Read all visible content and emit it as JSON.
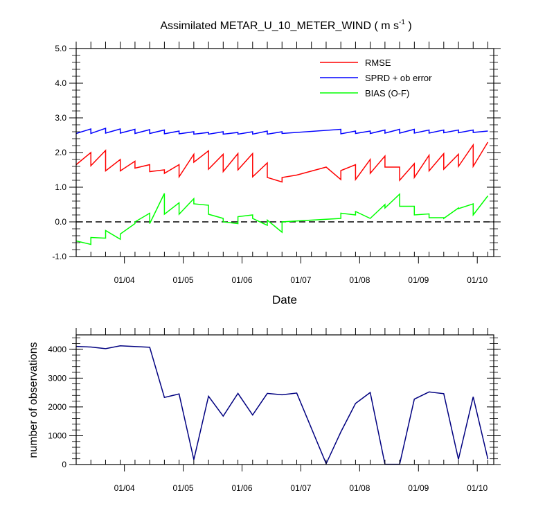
{
  "chart_data": [
    {
      "type": "line",
      "title": "Assimilated METAR_U_10_METER_WIND ( m s",
      "title_sup": "-1",
      "title_end": " )",
      "xlabel": "Date",
      "ylabel": "",
      "xlim": [
        0,
        7.1
      ],
      "ylim": [
        -1.0,
        5.0
      ],
      "x_ticks": [
        {
          "label": "01/04",
          "x": 0.82
        },
        {
          "label": "01/05",
          "x": 1.82
        },
        {
          "label": "01/06",
          "x": 2.82
        },
        {
          "label": "01/07",
          "x": 3.82
        },
        {
          "label": "01/08",
          "x": 4.82
        },
        {
          "label": "01/09",
          "x": 5.82
        },
        {
          "label": "01/10",
          "x": 6.82
        }
      ],
      "y_ticks": [
        "-1.0",
        "0.0",
        "1.0",
        "2.0",
        "3.0",
        "4.0",
        "5.0"
      ],
      "y_tick_values": [
        -1,
        0,
        1,
        2,
        3,
        4,
        5
      ],
      "zero_line": true,
      "legend_position": "top-right",
      "series": [
        {
          "name": "RMSE",
          "color": "#ff0000",
          "x": [
            0.0,
            0.25,
            0.25,
            0.5,
            0.5,
            0.75,
            0.75,
            1.0,
            1.0,
            1.25,
            1.25,
            1.5,
            1.5,
            1.75,
            1.75,
            2.0,
            2.0,
            2.25,
            2.25,
            2.5,
            2.5,
            2.75,
            2.75,
            3.0,
            3.0,
            3.25,
            3.25,
            3.5,
            3.5,
            3.75,
            4.25,
            4.5,
            4.5,
            4.75,
            4.75,
            5.0,
            5.0,
            5.25,
            5.25,
            5.5,
            5.5,
            5.75,
            5.75,
            6.0,
            6.0,
            6.25,
            6.25,
            6.5,
            6.5,
            6.75,
            6.75,
            7.0
          ],
          "values": [
            1.65,
            2.0,
            1.62,
            2.06,
            1.47,
            1.8,
            1.47,
            1.75,
            1.55,
            1.65,
            1.45,
            1.5,
            1.4,
            1.65,
            1.3,
            1.95,
            1.72,
            2.05,
            1.52,
            1.95,
            1.45,
            1.97,
            1.5,
            1.97,
            1.3,
            1.7,
            1.28,
            1.15,
            1.28,
            1.35,
            1.58,
            1.22,
            1.48,
            1.65,
            1.22,
            1.8,
            1.4,
            1.9,
            1.58,
            1.58,
            1.2,
            1.68,
            1.28,
            1.92,
            1.47,
            1.97,
            1.52,
            1.95,
            1.6,
            2.22,
            1.6,
            2.3
          ]
        },
        {
          "name": "SPRD + ob error",
          "color": "#0000ff",
          "x": [
            0.0,
            0.25,
            0.25,
            0.5,
            0.5,
            0.75,
            0.75,
            1.0,
            1.0,
            1.25,
            1.25,
            1.5,
            1.5,
            1.75,
            1.75,
            2.0,
            2.0,
            2.25,
            2.25,
            2.5,
            2.5,
            2.75,
            2.75,
            3.0,
            3.0,
            3.25,
            3.25,
            3.5,
            3.5,
            4.5,
            4.5,
            4.75,
            4.75,
            5.0,
            5.0,
            5.25,
            5.25,
            5.5,
            5.5,
            5.75,
            5.75,
            6.0,
            6.0,
            6.25,
            6.25,
            6.5,
            6.5,
            6.75,
            6.75,
            7.0
          ],
          "values": [
            2.55,
            2.68,
            2.55,
            2.7,
            2.56,
            2.68,
            2.56,
            2.67,
            2.55,
            2.66,
            2.55,
            2.65,
            2.54,
            2.62,
            2.54,
            2.6,
            2.53,
            2.58,
            2.53,
            2.6,
            2.53,
            2.58,
            2.53,
            2.6,
            2.53,
            2.62,
            2.53,
            2.6,
            2.55,
            2.67,
            2.54,
            2.62,
            2.55,
            2.62,
            2.55,
            2.65,
            2.56,
            2.67,
            2.56,
            2.67,
            2.56,
            2.65,
            2.56,
            2.65,
            2.57,
            2.65,
            2.57,
            2.65,
            2.58,
            2.62
          ]
        },
        {
          "name": "BIAS (O-F)",
          "color": "#00ff00",
          "x": [
            0.0,
            0.25,
            0.25,
            0.5,
            0.5,
            0.75,
            0.75,
            1.0,
            1.0,
            1.25,
            1.25,
            1.5,
            1.5,
            1.75,
            1.75,
            2.0,
            2.0,
            2.25,
            2.25,
            2.5,
            2.5,
            2.75,
            2.75,
            3.0,
            3.0,
            3.25,
            3.25,
            3.5,
            3.5,
            4.5,
            4.5,
            4.75,
            4.75,
            5.0,
            5.0,
            5.25,
            5.25,
            5.5,
            5.5,
            5.75,
            5.75,
            6.0,
            6.0,
            6.25,
            6.25,
            6.5,
            6.5,
            6.75,
            6.75,
            7.0
          ],
          "values": [
            -0.55,
            -0.65,
            -0.45,
            -0.47,
            -0.25,
            -0.5,
            -0.35,
            -0.05,
            0.0,
            0.25,
            -0.05,
            0.82,
            0.22,
            0.55,
            0.22,
            0.67,
            0.52,
            0.48,
            0.22,
            0.1,
            0.0,
            -0.05,
            0.15,
            0.2,
            0.1,
            -0.1,
            0.05,
            -0.3,
            0.0,
            0.1,
            0.25,
            0.2,
            0.3,
            0.1,
            0.1,
            0.5,
            0.4,
            0.8,
            0.45,
            0.45,
            0.2,
            0.23,
            0.12,
            0.12,
            0.1,
            0.4,
            0.38,
            0.52,
            0.2,
            0.75
          ]
        }
      ]
    },
    {
      "type": "line",
      "title": "",
      "xlabel": "",
      "ylabel": "number of observations",
      "xlim": [
        0,
        7.1
      ],
      "ylim": [
        0,
        4500
      ],
      "x_ticks": [
        {
          "label": "01/04",
          "x": 0.82
        },
        {
          "label": "01/05",
          "x": 1.82
        },
        {
          "label": "01/06",
          "x": 2.82
        },
        {
          "label": "01/07",
          "x": 3.82
        },
        {
          "label": "01/08",
          "x": 4.82
        },
        {
          "label": "01/09",
          "x": 5.82
        },
        {
          "label": "01/10",
          "x": 6.82
        }
      ],
      "y_ticks": [
        "0",
        "1000",
        "2000",
        "3000",
        "4000"
      ],
      "y_tick_values": [
        0,
        1000,
        2000,
        3000,
        4000
      ],
      "series": [
        {
          "name": "number of observations",
          "color": "#000080",
          "x": [
            0.0,
            0.25,
            0.5,
            0.75,
            1.25,
            1.5,
            1.75,
            2.0,
            2.25,
            2.5,
            2.75,
            3.0,
            3.25,
            3.5,
            3.75,
            4.25,
            4.5,
            4.75,
            5.0,
            5.25,
            5.5,
            5.75,
            6.0,
            6.25,
            6.5,
            6.75,
            7.0
          ],
          "values": [
            4100,
            4080,
            4020,
            4120,
            4070,
            2330,
            2450,
            170,
            2370,
            1680,
            2470,
            1720,
            2470,
            2420,
            2480,
            30,
            1130,
            2120,
            2500,
            10,
            10,
            2270,
            2520,
            2460,
            180,
            2350,
            190
          ]
        }
      ]
    }
  ]
}
